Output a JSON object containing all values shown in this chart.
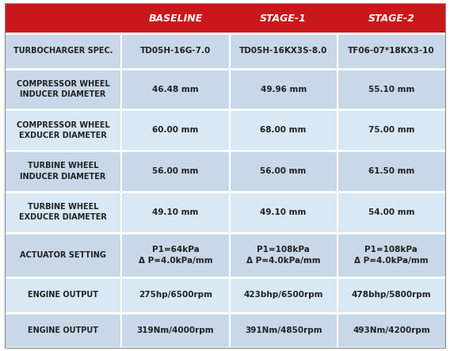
{
  "header_bg": "#C8181A",
  "header_text_color": "#FFFFFF",
  "bg_light": "#C8D8E8",
  "bg_lighter": "#D8E8F0",
  "cell_text_color": "#222222",
  "label_text_color": "#222222",
  "columns": [
    "BASELINE",
    "STAGE-1",
    "STAGE-2"
  ],
  "rows": [
    {
      "label": "TURBOCHARGER SPEC.",
      "values": [
        "TD05H-16G-7.0",
        "TD05H-16KX3S-8.0",
        "TF06-07*18KX3-10"
      ],
      "bg": "#C8D8E8",
      "label_single": true
    },
    {
      "label": "COMPRESSOR WHEEL\nINDUCER DIAMETER",
      "values": [
        "46.48 mm",
        "49.96 mm",
        "55.10 mm"
      ],
      "bg": "#C8D8E8",
      "label_single": false
    },
    {
      "label": "COMPRESSOR WHEEL\nEXDUCER DIAMETER",
      "values": [
        "60.00 mm",
        "68.00 mm",
        "75.00 mm"
      ],
      "bg": "#D8E8F4",
      "label_single": false
    },
    {
      "label": "TURBINE WHEEL\nINDUCER DIAMETER",
      "values": [
        "56.00 mm",
        "56.00 mm",
        "61.50 mm"
      ],
      "bg": "#C8D8E8",
      "label_single": false
    },
    {
      "label": "TURBINE WHEEL\nEXDUCER DIAMETER",
      "values": [
        "49.10 mm",
        "49.10 mm",
        "54.00 mm"
      ],
      "bg": "#D8E8F4",
      "label_single": false
    },
    {
      "label": "ACTUATOR SETTING",
      "values": [
        "P1=64kPa\nΔ P=4.0kPa/mm",
        "P1=108kPa\nΔ P=4.0kPa/mm",
        "P1=108kPa\nΔ P=4.0kPa/mm"
      ],
      "bg": "#C8D8E8",
      "label_single": true
    },
    {
      "label": "ENGINE OUTPUT",
      "values": [
        "275hp/6500rpm",
        "423bhp/6500rpm",
        "478bhp/5800rpm"
      ],
      "bg": "#D8E8F4",
      "label_single": true
    },
    {
      "label": "ENGINE OUTPUT",
      "values": [
        "319Nm/4000rpm",
        "391Nm/4850rpm",
        "493Nm/4200rpm"
      ],
      "bg": "#C8D8E8",
      "label_single": true
    }
  ],
  "fig_w": 5.68,
  "fig_h": 4.43,
  "dpi": 100
}
